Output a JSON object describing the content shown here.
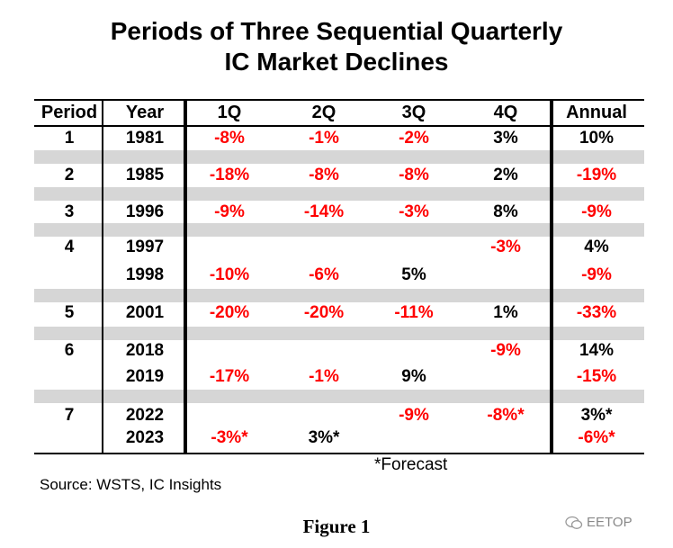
{
  "title_line1": "Periods of Three Sequential Quarterly",
  "title_line2": "IC Market Declines",
  "headers": [
    "Period",
    "Year",
    "1Q",
    "2Q",
    "3Q",
    "4Q",
    "Annual"
  ],
  "chart_data": {
    "type": "table",
    "columns": [
      "Period",
      "Year",
      "1Q",
      "2Q",
      "3Q",
      "4Q",
      "Annual"
    ],
    "rows": [
      {
        "period": "1",
        "year": "1981",
        "q1": "-8%",
        "q2": "-1%",
        "q3": "-2%",
        "q4": "3%",
        "annual": "10%"
      },
      {
        "period": "2",
        "year": "1985",
        "q1": "-18%",
        "q2": "-8%",
        "q3": "-8%",
        "q4": "2%",
        "annual": "-19%"
      },
      {
        "period": "3",
        "year": "1996",
        "q1": "-9%",
        "q2": "-14%",
        "q3": "-3%",
        "q4": "8%",
        "annual": "-9%"
      },
      {
        "period": "4",
        "year": "1997",
        "q1": "",
        "q2": "",
        "q3": "",
        "q4": "-3%",
        "annual": "4%"
      },
      {
        "period": "",
        "year": "1998",
        "q1": "-10%",
        "q2": "-6%",
        "q3": "5%",
        "q4": "",
        "annual": "-9%"
      },
      {
        "period": "5",
        "year": "2001",
        "q1": "-20%",
        "q2": "-20%",
        "q3": "-11%",
        "q4": "1%",
        "annual": "-33%"
      },
      {
        "period": "6",
        "year": "2018",
        "q1": "",
        "q2": "",
        "q3": "",
        "q4": "-9%",
        "annual": "14%"
      },
      {
        "period": "",
        "year": "2019",
        "q1": "-17%",
        "q2": "-1%",
        "q3": "9%",
        "q4": "",
        "annual": "-15%"
      },
      {
        "period": "7",
        "year": "2022",
        "q1": "",
        "q2": "",
        "q3": "-9%",
        "q4": "-8%*",
        "annual": "3%*"
      },
      {
        "period": "",
        "year": "2023",
        "q1": "-3%*",
        "q2": "3%*",
        "q3": "",
        "q4": "",
        "annual": "-6%*"
      }
    ],
    "negative_color": "#ff0000",
    "positive_color": "#000000"
  },
  "forecast_note": "*Forecast",
  "source": "Source: WSTS, IC Insights",
  "figure_label": "Figure 1",
  "watermark": "EETOP"
}
